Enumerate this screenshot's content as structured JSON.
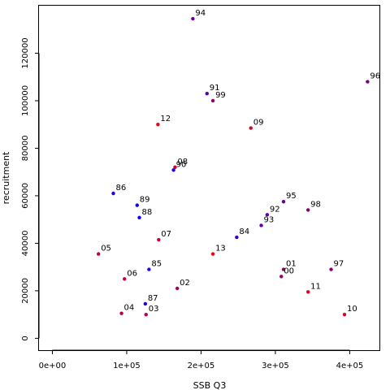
{
  "chart_data": {
    "type": "scatter",
    "title": "",
    "xlabel": "SSB Q3",
    "ylabel": "recruitment",
    "xlim": [
      -18000,
      440000
    ],
    "ylim": [
      -5000,
      140000
    ],
    "x_ticks": [
      {
        "value": 0,
        "label": "0e+00"
      },
      {
        "value": 100000,
        "label": "1e+05"
      },
      {
        "value": 200000,
        "label": "2e+05"
      },
      {
        "value": 300000,
        "label": "3e+05"
      },
      {
        "value": 400000,
        "label": "4e+05"
      }
    ],
    "y_ticks": [
      {
        "value": 0,
        "label": "0"
      },
      {
        "value": 20000,
        "label": "20000"
      },
      {
        "value": 40000,
        "label": "40000"
      },
      {
        "value": 60000,
        "label": "60000"
      },
      {
        "value": 80000,
        "label": "80000"
      },
      {
        "value": 100000,
        "label": "100000"
      },
      {
        "value": 120000,
        "label": "120000"
      }
    ],
    "grid": false,
    "legend": "none",
    "colors": {
      "early": "#0000ff",
      "late": "#ff0000"
    },
    "points": [
      {
        "label": "84",
        "x": 248000,
        "y": 42500,
        "color": "#3a00c5"
      },
      {
        "label": "85",
        "x": 130000,
        "y": 29000,
        "color": "#2f00d0"
      },
      {
        "label": "86",
        "x": 82000,
        "y": 61000,
        "color": "#2600d9"
      },
      {
        "label": "87",
        "x": 125000,
        "y": 14500,
        "color": "#1c00e3"
      },
      {
        "label": "88",
        "x": 117000,
        "y": 50800,
        "color": "#1200ed"
      },
      {
        "label": "89",
        "x": 114000,
        "y": 56000,
        "color": "#0800f7"
      },
      {
        "label": "90",
        "x": 163000,
        "y": 70800,
        "color": "#2000df"
      },
      {
        "label": "91",
        "x": 208000,
        "y": 103000,
        "color": "#5400ab"
      },
      {
        "label": "92",
        "x": 289000,
        "y": 52000,
        "color": "#5b00a4"
      },
      {
        "label": "93",
        "x": 281000,
        "y": 47500,
        "color": "#62009d"
      },
      {
        "label": "94",
        "x": 189000,
        "y": 134500,
        "color": "#6a0095"
      },
      {
        "label": "95",
        "x": 311000,
        "y": 57500,
        "color": "#71008e"
      },
      {
        "label": "96",
        "x": 424000,
        "y": 108000,
        "color": "#780087"
      },
      {
        "label": "97",
        "x": 375000,
        "y": 29000,
        "color": "#800080"
      },
      {
        "label": "98",
        "x": 344000,
        "y": 54000,
        "color": "#870078"
      },
      {
        "label": "99",
        "x": 216000,
        "y": 100000,
        "color": "#8e0071"
      },
      {
        "label": "00",
        "x": 308000,
        "y": 26000,
        "color": "#95006a"
      },
      {
        "label": "01",
        "x": 311000,
        "y": 29000,
        "color": "#9c0063"
      },
      {
        "label": "02",
        "x": 168000,
        "y": 21000,
        "color": "#a3005c"
      },
      {
        "label": "03",
        "x": 126000,
        "y": 10000,
        "color": "#ab0054"
      },
      {
        "label": "04",
        "x": 93000,
        "y": 10500,
        "color": "#b2004d"
      },
      {
        "label": "05",
        "x": 62000,
        "y": 35500,
        "color": "#b90046"
      },
      {
        "label": "06",
        "x": 97000,
        "y": 25000,
        "color": "#c0003f"
      },
      {
        "label": "07",
        "x": 143000,
        "y": 41500,
        "color": "#c70038"
      },
      {
        "label": "08",
        "x": 165000,
        "y": 72000,
        "color": "#ce0031"
      },
      {
        "label": "09",
        "x": 267000,
        "y": 88500,
        "color": "#d50029"
      },
      {
        "label": "10",
        "x": 393000,
        "y": 10000,
        "color": "#dc0022"
      },
      {
        "label": "11",
        "x": 344000,
        "y": 19500,
        "color": "#e3001b"
      },
      {
        "label": "12",
        "x": 142000,
        "y": 90000,
        "color": "#ea0014"
      },
      {
        "label": "13",
        "x": 216000,
        "y": 35500,
        "color": "#f1000d"
      }
    ]
  }
}
